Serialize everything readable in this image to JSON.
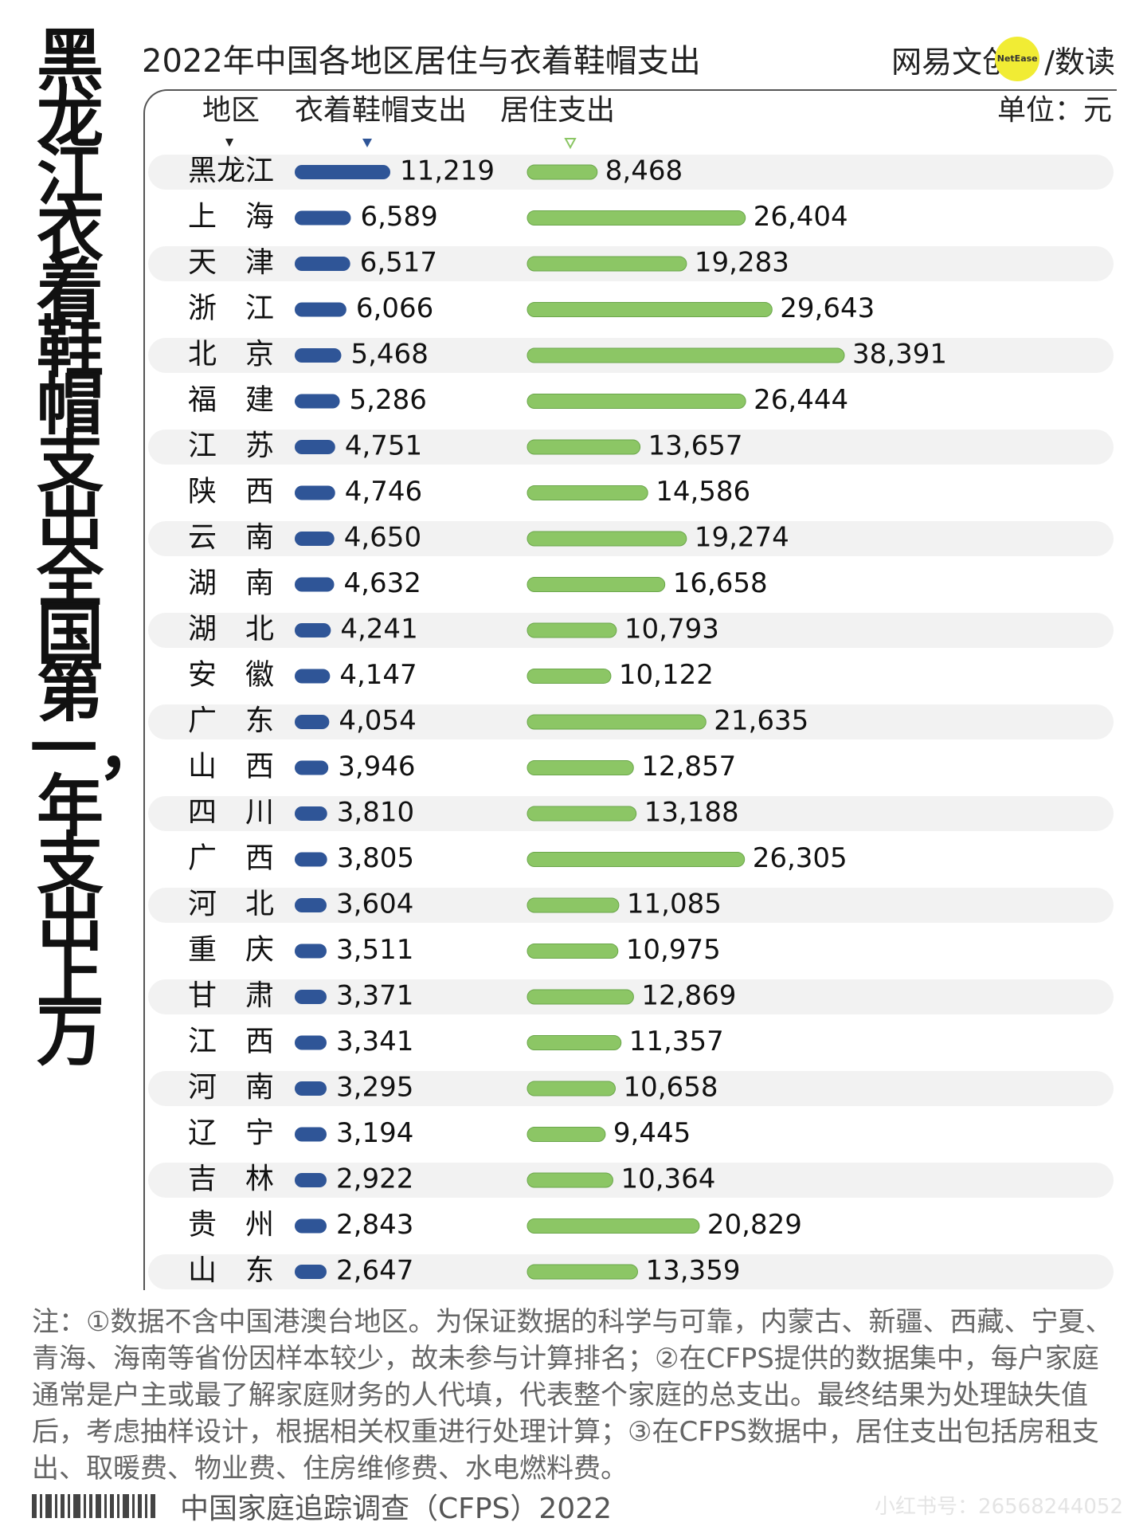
{
  "side_title": "黑龙江衣着鞋帽支出全国第一，年支出上万",
  "brand": {
    "left": "网易文创",
    "circle": "NetEase",
    "right": "/数读",
    "circle_color": "#f1ec34"
  },
  "notes": "注：①数据不含中国港澳台地区。为保证数据的科学与可靠，内蒙古、新疆、西藏、宁夏、青海、海南等省份因样本较少，故未参与计算排名；②在CFPS提供的数据集中，每户家庭通常是户主或最了解家庭财务的人代填，代表整个家庭的总支出。最终结果为处理缺失值后，考虑抽样设计，根据相关权重进行处理计算；③在CFPS数据中，居住支出包括房租支出、取暖费、物业费、住房维修费、水电燃料费。",
  "source": "中国家庭追踪调查（CFPS）2022",
  "watermark": "小红书号：26568244052",
  "chart_data": {
    "type": "bar",
    "title": "2022年中国各地区居住与衣着鞋帽支出",
    "unit": "单位：元",
    "category_header": "地区",
    "categories": [
      "黑龙江",
      "上　海",
      "天　津",
      "浙　江",
      "北　京",
      "福　建",
      "江　苏",
      "陕　西",
      "云　南",
      "湖　南",
      "湖　北",
      "安　徽",
      "广　东",
      "山　西",
      "四　川",
      "广　西",
      "河　北",
      "重　庆",
      "甘　肃",
      "江　西",
      "河　南",
      "辽　宁",
      "吉　林",
      "贵　州",
      "山　东"
    ],
    "series": [
      {
        "name": "衣着鞋帽支出",
        "color": "#2f5597",
        "values": [
          11219,
          6589,
          6517,
          6066,
          5468,
          5286,
          4751,
          4746,
          4650,
          4632,
          4241,
          4147,
          4054,
          3946,
          3810,
          3805,
          3604,
          3511,
          3371,
          3341,
          3295,
          3194,
          2922,
          2843,
          2647
        ],
        "labels": [
          "11,219",
          "6,589",
          "6,517",
          "6,066",
          "5,468",
          "5,286",
          "4,751",
          "4,746",
          "4,650",
          "4,632",
          "4,241",
          "4,147",
          "4,054",
          "3,946",
          "3,810",
          "3,805",
          "3,604",
          "3,511",
          "3,371",
          "3,341",
          "3,295",
          "3,194",
          "2,922",
          "2,843",
          "2,647"
        ]
      },
      {
        "name": "居住支出",
        "color": "#8cc665",
        "values": [
          8468,
          26404,
          19283,
          29643,
          38391,
          26444,
          13657,
          14586,
          19274,
          16658,
          10793,
          10122,
          21635,
          12857,
          13188,
          26305,
          11085,
          10975,
          12869,
          11357,
          10658,
          9445,
          10364,
          20829,
          13359
        ],
        "labels": [
          "8,468",
          "26,404",
          "19,283",
          "29,643",
          "38,391",
          "26,444",
          "13,657",
          "14,586",
          "19,274",
          "16,658",
          "10,793",
          "10,122",
          "21,635",
          "12,857",
          "13,188",
          "26,305",
          "11,085",
          "10,975",
          "12,869",
          "11,357",
          "10,658",
          "9,445",
          "10,364",
          "20,829",
          "13,359"
        ]
      }
    ],
    "sorted_by": "衣着鞋帽支出",
    "row_stripe_color": "#f2f2f2"
  }
}
